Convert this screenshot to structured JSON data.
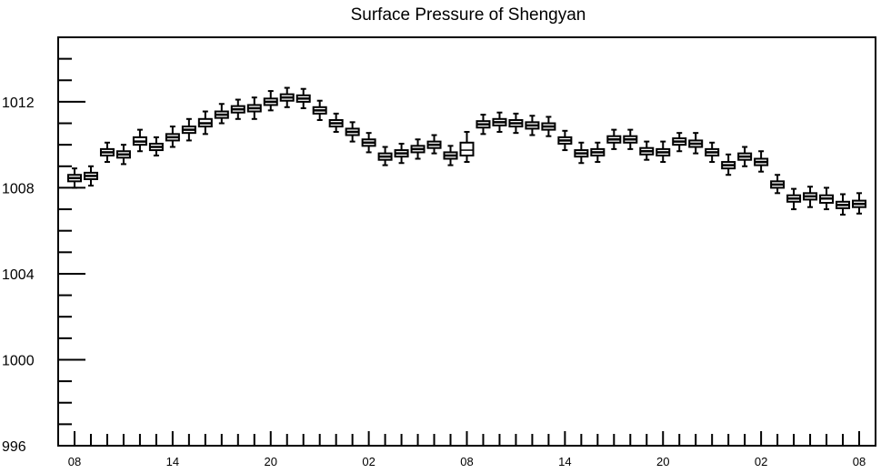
{
  "chart_data": {
    "type": "box",
    "title": "Surface Pressure of Shengyan",
    "xlabel": "",
    "ylabel": "",
    "ylim": [
      996,
      1015
    ],
    "y_ticks": [
      996,
      1000,
      1004,
      1008,
      1012
    ],
    "x_tick_labels": [
      "08",
      "14",
      "20",
      "02",
      "08",
      "14",
      "20",
      "02",
      "08"
    ],
    "x_tick_label_steps": [
      0,
      6,
      12,
      18,
      24,
      30,
      36,
      42,
      48
    ],
    "time_step_hours": 1,
    "num_steps": 49,
    "boxes": [
      {
        "step": 0,
        "whisker_low": 1008.0,
        "q1": 1008.3,
        "median": 1008.45,
        "q3": 1008.6,
        "whisker_high": 1008.9,
        "hollow": false
      },
      {
        "step": 1,
        "whisker_low": 1008.1,
        "q1": 1008.4,
        "median": 1008.55,
        "q3": 1008.7,
        "whisker_high": 1009.0,
        "hollow": false
      },
      {
        "step": 2,
        "whisker_low": 1009.2,
        "q1": 1009.5,
        "median": 1009.65,
        "q3": 1009.8,
        "whisker_high": 1010.1,
        "hollow": false
      },
      {
        "step": 3,
        "whisker_low": 1009.1,
        "q1": 1009.4,
        "median": 1009.55,
        "q3": 1009.7,
        "whisker_high": 1010.0,
        "hollow": false
      },
      {
        "step": 4,
        "whisker_low": 1009.7,
        "q1": 1010.0,
        "median": 1010.15,
        "q3": 1010.35,
        "whisker_high": 1010.7,
        "hollow": false
      },
      {
        "step": 5,
        "whisker_low": 1009.5,
        "q1": 1009.75,
        "median": 1009.9,
        "q3": 1010.05,
        "whisker_high": 1010.35,
        "hollow": false
      },
      {
        "step": 6,
        "whisker_low": 1009.9,
        "q1": 1010.2,
        "median": 1010.35,
        "q3": 1010.5,
        "whisker_high": 1010.85,
        "hollow": false
      },
      {
        "step": 7,
        "whisker_low": 1010.2,
        "q1": 1010.55,
        "median": 1010.7,
        "q3": 1010.85,
        "whisker_high": 1011.2,
        "hollow": false
      },
      {
        "step": 8,
        "whisker_low": 1010.5,
        "q1": 1010.85,
        "median": 1011.0,
        "q3": 1011.2,
        "whisker_high": 1011.55,
        "hollow": false
      },
      {
        "step": 9,
        "whisker_low": 1011.0,
        "q1": 1011.25,
        "median": 1011.4,
        "q3": 1011.55,
        "whisker_high": 1011.9,
        "hollow": false
      },
      {
        "step": 10,
        "whisker_low": 1011.2,
        "q1": 1011.5,
        "median": 1011.65,
        "q3": 1011.8,
        "whisker_high": 1012.1,
        "hollow": false
      },
      {
        "step": 11,
        "whisker_low": 1011.2,
        "q1": 1011.55,
        "median": 1011.7,
        "q3": 1011.85,
        "whisker_high": 1012.2,
        "hollow": false
      },
      {
        "step": 12,
        "whisker_low": 1011.6,
        "q1": 1011.85,
        "median": 1012.0,
        "q3": 1012.15,
        "whisker_high": 1012.5,
        "hollow": false
      },
      {
        "step": 13,
        "whisker_low": 1011.75,
        "q1": 1012.05,
        "median": 1012.2,
        "q3": 1012.35,
        "whisker_high": 1012.65,
        "hollow": false
      },
      {
        "step": 14,
        "whisker_low": 1011.7,
        "q1": 1012.0,
        "median": 1012.15,
        "q3": 1012.3,
        "whisker_high": 1012.6,
        "hollow": false
      },
      {
        "step": 15,
        "whisker_low": 1011.15,
        "q1": 1011.45,
        "median": 1011.6,
        "q3": 1011.75,
        "whisker_high": 1012.05,
        "hollow": false
      },
      {
        "step": 16,
        "whisker_low": 1010.6,
        "q1": 1010.85,
        "median": 1011.0,
        "q3": 1011.15,
        "whisker_high": 1011.45,
        "hollow": false
      },
      {
        "step": 17,
        "whisker_low": 1010.15,
        "q1": 1010.45,
        "median": 1010.6,
        "q3": 1010.75,
        "whisker_high": 1011.05,
        "hollow": false
      },
      {
        "step": 18,
        "whisker_low": 1009.65,
        "q1": 1009.95,
        "median": 1010.1,
        "q3": 1010.25,
        "whisker_high": 1010.55,
        "hollow": false
      },
      {
        "step": 19,
        "whisker_low": 1009.05,
        "q1": 1009.3,
        "median": 1009.45,
        "q3": 1009.6,
        "whisker_high": 1009.9,
        "hollow": false
      },
      {
        "step": 20,
        "whisker_low": 1009.15,
        "q1": 1009.45,
        "median": 1009.6,
        "q3": 1009.75,
        "whisker_high": 1010.05,
        "hollow": false
      },
      {
        "step": 21,
        "whisker_low": 1009.35,
        "q1": 1009.65,
        "median": 1009.8,
        "q3": 1009.95,
        "whisker_high": 1010.25,
        "hollow": false
      },
      {
        "step": 22,
        "whisker_low": 1009.6,
        "q1": 1009.85,
        "median": 1010.0,
        "q3": 1010.15,
        "whisker_high": 1010.45,
        "hollow": false
      },
      {
        "step": 23,
        "whisker_low": 1009.05,
        "q1": 1009.35,
        "median": 1009.5,
        "q3": 1009.65,
        "whisker_high": 1009.95,
        "hollow": false
      },
      {
        "step": 24,
        "whisker_low": 1009.2,
        "q1": 1009.5,
        "median": 1009.75,
        "q3": 1010.1,
        "whisker_high": 1010.6,
        "hollow": true
      },
      {
        "step": 25,
        "whisker_low": 1010.5,
        "q1": 1010.8,
        "median": 1010.95,
        "q3": 1011.1,
        "whisker_high": 1011.4,
        "hollow": false
      },
      {
        "step": 26,
        "whisker_low": 1010.6,
        "q1": 1010.9,
        "median": 1011.05,
        "q3": 1011.2,
        "whisker_high": 1011.5,
        "hollow": false
      },
      {
        "step": 27,
        "whisker_low": 1010.55,
        "q1": 1010.85,
        "median": 1011.0,
        "q3": 1011.15,
        "whisker_high": 1011.45,
        "hollow": false
      },
      {
        "step": 28,
        "whisker_low": 1010.45,
        "q1": 1010.75,
        "median": 1010.9,
        "q3": 1011.05,
        "whisker_high": 1011.35,
        "hollow": false
      },
      {
        "step": 29,
        "whisker_low": 1010.4,
        "q1": 1010.7,
        "median": 1010.85,
        "q3": 1011.0,
        "whisker_high": 1011.3,
        "hollow": false
      },
      {
        "step": 30,
        "whisker_low": 1009.75,
        "q1": 1010.05,
        "median": 1010.2,
        "q3": 1010.35,
        "whisker_high": 1010.65,
        "hollow": false
      },
      {
        "step": 31,
        "whisker_low": 1009.15,
        "q1": 1009.45,
        "median": 1009.6,
        "q3": 1009.75,
        "whisker_high": 1010.1,
        "hollow": false
      },
      {
        "step": 32,
        "whisker_low": 1009.2,
        "q1": 1009.5,
        "median": 1009.65,
        "q3": 1009.8,
        "whisker_high": 1010.1,
        "hollow": false
      },
      {
        "step": 33,
        "whisker_low": 1009.8,
        "q1": 1010.1,
        "median": 1010.25,
        "q3": 1010.4,
        "whisker_high": 1010.7,
        "hollow": false
      },
      {
        "step": 34,
        "whisker_low": 1009.8,
        "q1": 1010.1,
        "median": 1010.25,
        "q3": 1010.4,
        "whisker_high": 1010.7,
        "hollow": false
      },
      {
        "step": 35,
        "whisker_low": 1009.3,
        "q1": 1009.55,
        "median": 1009.7,
        "q3": 1009.85,
        "whisker_high": 1010.15,
        "hollow": false
      },
      {
        "step": 36,
        "whisker_low": 1009.2,
        "q1": 1009.5,
        "median": 1009.65,
        "q3": 1009.8,
        "whisker_high": 1010.15,
        "hollow": false
      },
      {
        "step": 37,
        "whisker_low": 1009.7,
        "q1": 1010.0,
        "median": 1010.15,
        "q3": 1010.3,
        "whisker_high": 1010.55,
        "hollow": false
      },
      {
        "step": 38,
        "whisker_low": 1009.6,
        "q1": 1009.9,
        "median": 1010.05,
        "q3": 1010.2,
        "whisker_high": 1010.55,
        "hollow": false
      },
      {
        "step": 39,
        "whisker_low": 1009.2,
        "q1": 1009.5,
        "median": 1009.65,
        "q3": 1009.8,
        "whisker_high": 1010.1,
        "hollow": false
      },
      {
        "step": 40,
        "whisker_low": 1008.6,
        "q1": 1008.9,
        "median": 1009.05,
        "q3": 1009.2,
        "whisker_high": 1009.55,
        "hollow": false
      },
      {
        "step": 41,
        "whisker_low": 1009.0,
        "q1": 1009.3,
        "median": 1009.45,
        "q3": 1009.6,
        "whisker_high": 1009.9,
        "hollow": false
      },
      {
        "step": 42,
        "whisker_low": 1008.75,
        "q1": 1009.05,
        "median": 1009.2,
        "q3": 1009.35,
        "whisker_high": 1009.7,
        "hollow": false
      },
      {
        "step": 43,
        "whisker_low": 1007.75,
        "q1": 1008.0,
        "median": 1008.15,
        "q3": 1008.3,
        "whisker_high": 1008.6,
        "hollow": false
      },
      {
        "step": 44,
        "whisker_low": 1007.0,
        "q1": 1007.35,
        "median": 1007.5,
        "q3": 1007.65,
        "whisker_high": 1007.95,
        "hollow": false
      },
      {
        "step": 45,
        "whisker_low": 1007.1,
        "q1": 1007.45,
        "median": 1007.6,
        "q3": 1007.75,
        "whisker_high": 1008.05,
        "hollow": false
      },
      {
        "step": 46,
        "whisker_low": 1007.0,
        "q1": 1007.3,
        "median": 1007.5,
        "q3": 1007.65,
        "whisker_high": 1008.0,
        "hollow": false
      },
      {
        "step": 47,
        "whisker_low": 1006.75,
        "q1": 1007.05,
        "median": 1007.2,
        "q3": 1007.35,
        "whisker_high": 1007.7,
        "hollow": false
      },
      {
        "step": 48,
        "whisker_low": 1006.8,
        "q1": 1007.1,
        "median": 1007.25,
        "q3": 1007.4,
        "whisker_high": 1007.75,
        "hollow": false
      }
    ],
    "grid": false,
    "legend": "none"
  }
}
